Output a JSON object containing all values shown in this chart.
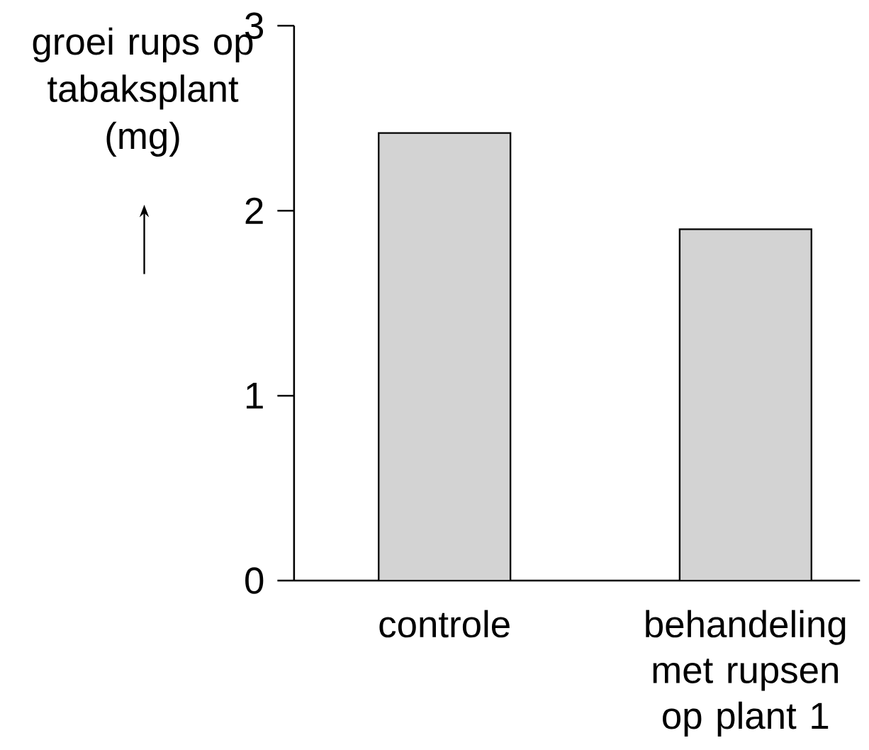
{
  "chart_data": {
    "type": "bar",
    "ylabel": "groei rups op tabaksplant (mg)",
    "categories": [
      "controle",
      "behandeling met rupsen op plant 1"
    ],
    "values": [
      2.42,
      1.9
    ],
    "color": "#d3d3d3",
    "ylim": [
      0,
      3
    ],
    "yticks": [
      0,
      1,
      2,
      3
    ],
    "grid": false
  }
}
